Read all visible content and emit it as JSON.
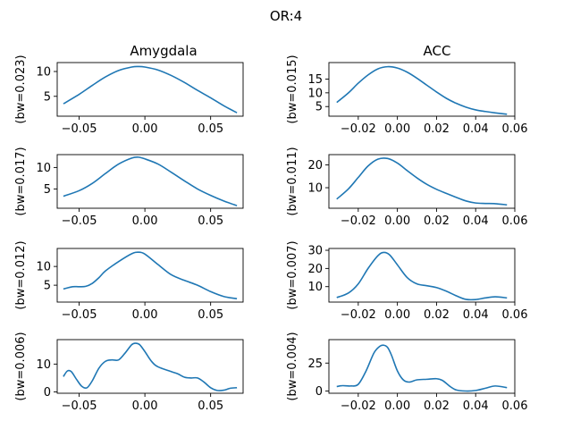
{
  "chart_data": {
    "type": "line",
    "suptitle": "OR:4",
    "column_titles": [
      "Amygdala",
      "ACC"
    ],
    "panels": [
      {
        "row": 0,
        "col": 0,
        "ylabel": "(bw=0.023)",
        "xlim": [
          -0.0667,
          0.0747
        ],
        "ylim": [
          1.0,
          11.8
        ],
        "xticks": [
          -0.05,
          0.0,
          0.05
        ],
        "xtick_labels": [
          "−0.05",
          "0.00",
          "0.05"
        ],
        "yticks": [
          5,
          10
        ],
        "ytick_labels": [
          "5",
          "10"
        ],
        "series": [
          {
            "x": [
              -0.062,
              -0.05,
              -0.04,
              -0.03,
              -0.02,
              -0.01,
              -0.005,
              0.0,
              0.01,
              0.02,
              0.03,
              0.04,
              0.05,
              0.06,
              0.07
            ],
            "y": [
              3.5,
              5.4,
              7.2,
              8.9,
              10.2,
              10.9,
              11.0,
              10.9,
              10.3,
              9.2,
              7.8,
              6.2,
              4.7,
              3.1,
              1.7
            ]
          }
        ]
      },
      {
        "row": 0,
        "col": 1,
        "ylabel": "(bw=0.015)",
        "xlim": [
          -0.035,
          0.06
        ],
        "ylim": [
          1.5,
          21.0
        ],
        "xticks": [
          -0.02,
          0.0,
          0.02,
          0.04,
          0.06
        ],
        "xtick_labels": [
          "−0.02",
          "0.00",
          "0.02",
          "0.04",
          "0.06"
        ],
        "yticks": [
          5,
          10,
          15
        ],
        "ytick_labels": [
          "5",
          "10",
          "15"
        ],
        "series": [
          {
            "x": [
              -0.031,
              -0.025,
              -0.02,
              -0.015,
              -0.01,
              -0.005,
              0.0,
              0.005,
              0.01,
              0.015,
              0.02,
              0.025,
              0.03,
              0.035,
              0.04,
              0.045,
              0.05,
              0.056
            ],
            "y": [
              6.5,
              10.0,
              13.5,
              16.5,
              18.7,
              19.5,
              19.0,
              17.5,
              15.3,
              12.8,
              10.3,
              8.0,
              6.2,
              4.8,
              3.8,
              3.2,
              2.7,
              2.2
            ]
          }
        ]
      },
      {
        "row": 1,
        "col": 0,
        "ylabel": "(bw=0.017)",
        "xlim": [
          -0.0667,
          0.0747
        ],
        "ylim": [
          0.5,
          13.0
        ],
        "xticks": [
          -0.05,
          0.0,
          0.05
        ],
        "xtick_labels": [
          "−0.05",
          "0.00",
          "0.05"
        ],
        "yticks": [
          5,
          10
        ],
        "ytick_labels": [
          "5",
          "10"
        ],
        "series": [
          {
            "x": [
              -0.062,
              -0.05,
              -0.04,
              -0.03,
              -0.02,
              -0.01,
              -0.005,
              0.0,
              0.01,
              0.02,
              0.03,
              0.04,
              0.05,
              0.06,
              0.07
            ],
            "y": [
              3.3,
              4.6,
              6.3,
              8.6,
              10.8,
              12.2,
              12.4,
              12.0,
              10.8,
              8.9,
              6.9,
              5.0,
              3.5,
              2.2,
              1.1
            ]
          }
        ]
      },
      {
        "row": 1,
        "col": 1,
        "ylabel": "(bw=0.011)",
        "xlim": [
          -0.035,
          0.06
        ],
        "ylim": [
          1.0,
          24.5
        ],
        "xticks": [
          -0.02,
          0.0,
          0.02,
          0.04,
          0.06
        ],
        "xtick_labels": [
          "−0.02",
          "0.00",
          "0.02",
          "0.04",
          "0.06"
        ],
        "yticks": [
          10,
          20
        ],
        "ytick_labels": [
          "10",
          "20"
        ],
        "series": [
          {
            "x": [
              -0.031,
              -0.025,
              -0.02,
              -0.015,
              -0.01,
              -0.005,
              0.0,
              0.005,
              0.01,
              0.015,
              0.02,
              0.025,
              0.03,
              0.035,
              0.04,
              0.045,
              0.05,
              0.056
            ],
            "y": [
              5.0,
              9.5,
              14.5,
              19.5,
              22.5,
              22.8,
              20.8,
              17.5,
              14.3,
              11.5,
              9.3,
              7.5,
              5.8,
              4.2,
              3.3,
              3.1,
              3.0,
              2.5
            ]
          }
        ]
      },
      {
        "row": 2,
        "col": 0,
        "ylabel": "(bw=0.012)",
        "xlim": [
          -0.0667,
          0.0747
        ],
        "ylim": [
          0.5,
          14.8
        ],
        "xticks": [
          -0.05,
          0.0,
          0.05
        ],
        "xtick_labels": [
          "−0.05",
          "0.00",
          "0.05"
        ],
        "yticks": [
          5,
          10
        ],
        "ytick_labels": [
          "5",
          "10"
        ],
        "series": [
          {
            "x": [
              -0.062,
              -0.055,
              -0.05,
              -0.045,
              -0.04,
              -0.035,
              -0.03,
              -0.02,
              -0.01,
              -0.005,
              0.0,
              0.01,
              0.02,
              0.03,
              0.04,
              0.05,
              0.06,
              0.07
            ],
            "y": [
              4.0,
              4.6,
              4.6,
              4.7,
              5.5,
              7.0,
              8.8,
              11.3,
              13.4,
              13.8,
              13.3,
              10.5,
              7.8,
              6.3,
              5.0,
              3.3,
              2.0,
              1.4
            ]
          }
        ]
      },
      {
        "row": 2,
        "col": 1,
        "ylabel": "(bw=0.007)",
        "xlim": [
          -0.035,
          0.06
        ],
        "ylim": [
          1.5,
          31.0
        ],
        "xticks": [
          -0.02,
          0.0,
          0.02,
          0.04,
          0.06
        ],
        "xtick_labels": [
          "−0.02",
          "0.00",
          "0.02",
          "0.04",
          "0.06"
        ],
        "yticks": [
          10,
          20,
          30
        ],
        "ytick_labels": [
          "10",
          "20",
          "30"
        ],
        "series": [
          {
            "x": [
              -0.031,
              -0.025,
              -0.02,
              -0.015,
              -0.01,
              -0.007,
              -0.004,
              0.0,
              0.005,
              0.01,
              0.015,
              0.02,
              0.025,
              0.03,
              0.035,
              0.04,
              0.045,
              0.05,
              0.056
            ],
            "y": [
              4.0,
              6.5,
              11.5,
              20.0,
              27.0,
              28.8,
              27.5,
              22.0,
              15.0,
              11.5,
              10.5,
              9.5,
              7.5,
              5.0,
              3.0,
              2.9,
              3.8,
              4.4,
              3.8
            ]
          }
        ]
      },
      {
        "row": 3,
        "col": 0,
        "ylabel": "(bw=0.006)",
        "xlim": [
          -0.0667,
          0.0747
        ],
        "ylim": [
          -0.5,
          18.8
        ],
        "xticks": [
          -0.05,
          0.0,
          0.05
        ],
        "xtick_labels": [
          "−0.05",
          "0.00",
          "0.05"
        ],
        "yticks": [
          0,
          10
        ],
        "ytick_labels": [
          "0",
          "10"
        ],
        "series": [
          {
            "x": [
              -0.062,
              -0.059,
              -0.056,
              -0.052,
              -0.048,
              -0.044,
              -0.04,
              -0.035,
              -0.03,
              -0.025,
              -0.02,
              -0.015,
              -0.01,
              -0.007,
              -0.004,
              0.0,
              0.005,
              0.01,
              0.02,
              0.025,
              0.03,
              0.035,
              0.04,
              0.045,
              0.05,
              0.055,
              0.06,
              0.065,
              0.07
            ],
            "y": [
              5.5,
              7.5,
              7.3,
              4.5,
              2.0,
              1.5,
              4.0,
              8.5,
              11.0,
              11.5,
              11.5,
              14.0,
              17.0,
              17.5,
              17.0,
              14.5,
              11.0,
              9.0,
              7.3,
              6.5,
              5.3,
              5.0,
              5.0,
              3.5,
              1.5,
              0.5,
              0.6,
              1.3,
              1.5
            ]
          }
        ]
      },
      {
        "row": 3,
        "col": 1,
        "ylabel": "(bw=0.004)",
        "xlim": [
          -0.035,
          0.06
        ],
        "ylim": [
          -2.0,
          46.0
        ],
        "xticks": [
          -0.02,
          0.0,
          0.02,
          0.04,
          0.06
        ],
        "xtick_labels": [
          "−0.02",
          "0.00",
          "0.02",
          "0.04",
          "0.06"
        ],
        "yticks": [
          0,
          25
        ],
        "ytick_labels": [
          "0",
          "25"
        ],
        "series": [
          {
            "x": [
              -0.031,
              -0.028,
              -0.024,
              -0.02,
              -0.016,
              -0.012,
              -0.009,
              -0.007,
              -0.005,
              -0.003,
              0.0,
              0.003,
              0.006,
              0.01,
              0.015,
              0.02,
              0.023,
              0.027,
              0.03,
              0.035,
              0.04,
              0.045,
              0.05,
              0.056
            ],
            "y": [
              4.0,
              4.8,
              4.5,
              6.0,
              18.0,
              34.0,
              40.0,
              41.0,
              39.0,
              32.0,
              18.0,
              10.0,
              8.0,
              10.0,
              10.5,
              11.0,
              9.5,
              4.0,
              1.0,
              0.0,
              0.5,
              2.5,
              4.5,
              3.0
            ]
          }
        ]
      }
    ]
  }
}
